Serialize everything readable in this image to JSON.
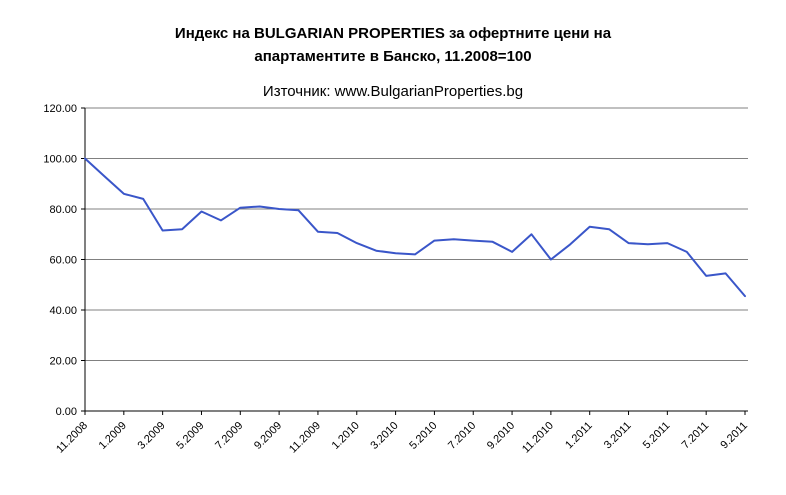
{
  "chart_data": {
    "type": "line",
    "title": "Индекс на BULGARIAN PROPERTIES за офертните цени на\nапартаментите в Банско, 11.2008=100",
    "subtitle": "Източник: www.BulgarianProperties.bg",
    "categories": [
      "11.2008",
      "12.2008",
      "1.2009",
      "2.2009",
      "3.2009",
      "4.2009",
      "5.2009",
      "6.2009",
      "7.2009",
      "8.2009",
      "9.2009",
      "10.2009",
      "11.2009",
      "12.2009",
      "1.2010",
      "2.2010",
      "3.2010",
      "4.2010",
      "5.2010",
      "6.2010",
      "7.2010",
      "8.2010",
      "9.2010",
      "10.2010",
      "11.2010",
      "12.2010",
      "1.2011",
      "2.2011",
      "3.2011",
      "4.2011",
      "5.2011",
      "6.2011",
      "7.2011",
      "8.2011",
      "9.2011"
    ],
    "values": [
      100,
      93,
      86,
      84,
      71.5,
      72,
      79,
      75.5,
      80.5,
      81,
      80,
      79.5,
      71,
      70.5,
      66.5,
      63.5,
      62.5,
      62,
      67.5,
      68,
      67.5,
      67,
      63,
      70,
      60,
      66,
      73,
      72,
      66.5,
      66,
      66.5,
      63,
      53.5,
      54.5,
      45.5
    ],
    "x_tick_labels": [
      "11.2008",
      "1.2009",
      "3.2009",
      "5.2009",
      "7.2009",
      "9.2009",
      "11.2009",
      "1.2010",
      "3.2010",
      "5.2010",
      "7.2010",
      "9.2010",
      "11.2010",
      "1.2011",
      "3.2011",
      "5.2011",
      "7.2011",
      "9.2011"
    ],
    "label_every": 2,
    "yticks": [
      "0.00",
      "20.00",
      "40.00",
      "60.00",
      "80.00",
      "100.00",
      "120.00"
    ],
    "ylim": [
      0,
      120
    ],
    "grid": true,
    "legend": "none",
    "line_color": "#3a56c9",
    "grid_color": "#808080",
    "axis_color": "#000000"
  }
}
